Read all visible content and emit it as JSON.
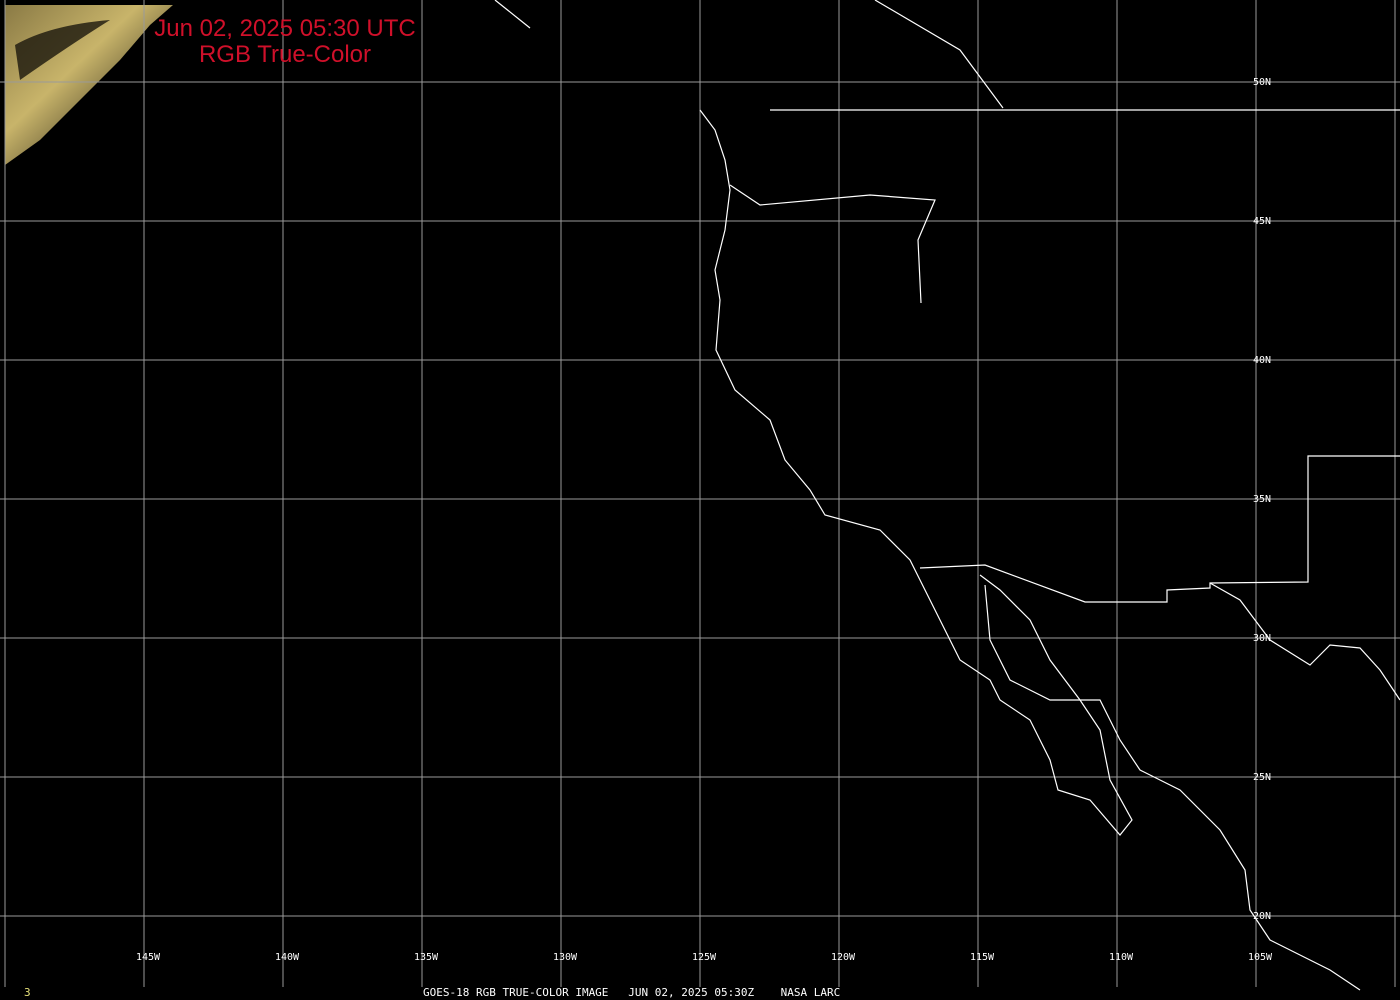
{
  "title": {
    "line1": "Jun 02, 2025 05:30 UTC",
    "line2": "RGB True-Color"
  },
  "footer": {
    "caption": "GOES-18 RGB TRUE-COLOR IMAGE   JUN 02, 2025 05:30Z    NASA LARC",
    "frame_number": "3"
  },
  "grid": {
    "longitude_labels": [
      "145W",
      "140W",
      "135W",
      "130W",
      "125W",
      "120W",
      "115W",
      "110W",
      "105W"
    ],
    "latitude_labels": [
      "50N",
      "45N",
      "40N",
      "35N",
      "30N",
      "25N",
      "20N"
    ]
  },
  "colors": {
    "title": "#d0102a",
    "grid": "#9a9a9a",
    "boundaries": "#ffffff",
    "frame_number": "#e6e07a",
    "background": "#000000"
  }
}
